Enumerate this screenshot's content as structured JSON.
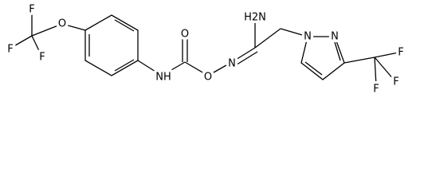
{
  "atoms": [
    {
      "label": "F"
    },
    {
      "label": "F"
    },
    {
      "label": "F"
    },
    {
      "label": "O"
    },
    {
      "label": "NH"
    },
    {
      "label": "O"
    },
    {
      "label": "O"
    },
    {
      "label": "H2N"
    },
    {
      "label": "N"
    },
    {
      "label": "N"
    },
    {
      "label": "N"
    },
    {
      "label": "F"
    },
    {
      "label": "F"
    },
    {
      "label": "F"
    }
  ]
}
